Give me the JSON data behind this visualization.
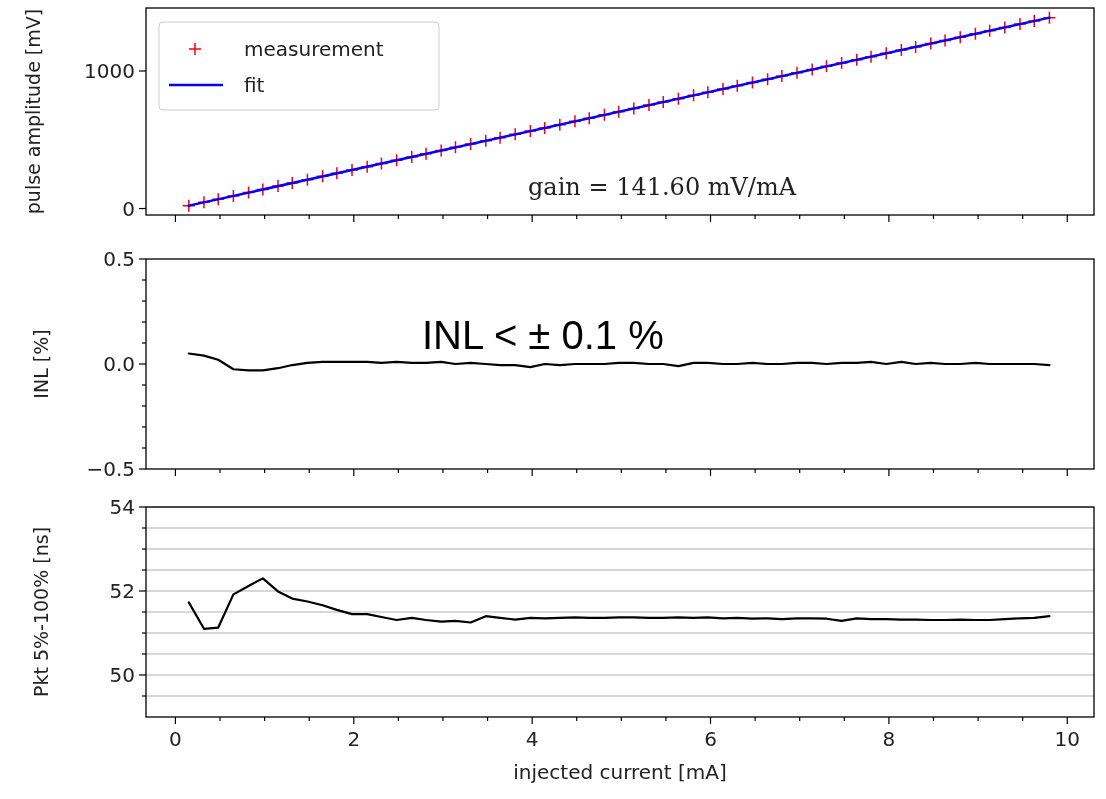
{
  "chart_data": [
    {
      "type": "scatter",
      "ylabel": "pulse amplitude [mV]",
      "annotations": [
        "gain = 141.60 mV/mA"
      ],
      "legend": "top left",
      "tick_labels": "y",
      "x": [
        0.15,
        0.32,
        0.48,
        0.65,
        0.82,
        0.98,
        1.15,
        1.31,
        1.48,
        1.65,
        1.81,
        1.98,
        2.15,
        2.31,
        2.48,
        2.65,
        2.81,
        2.98,
        3.14,
        3.31,
        3.48,
        3.64,
        3.81,
        3.98,
        4.14,
        4.31,
        4.48,
        4.64,
        4.81,
        4.97,
        5.14,
        5.31,
        5.47,
        5.64,
        5.81,
        5.97,
        6.14,
        6.3,
        6.47,
        6.64,
        6.8,
        6.97,
        7.14,
        7.3,
        7.47,
        7.64,
        7.8,
        7.97,
        8.14,
        8.3,
        8.47,
        8.63,
        8.8,
        8.97,
        9.13,
        9.3,
        9.47,
        9.63,
        9.8
      ],
      "series": [
        {
          "name": "measurement",
          "marker": "cross",
          "color": "#ff0000",
          "values": [
            21,
            45,
            68,
            92,
            116,
            139,
            163,
            185,
            210,
            234,
            256,
            280,
            304,
            327,
            351,
            375,
            398,
            422,
            445,
            469,
            493,
            515,
            540,
            564,
            586,
            610,
            634,
            657,
            681,
            704,
            728,
            752,
            775,
            799,
            823,
            845,
            869,
            892,
            916,
            940,
            963,
            987,
            1011,
            1034,
            1058,
            1082,
            1104,
            1129,
            1153,
            1175,
            1199,
            1222,
            1246,
            1270,
            1293,
            1317,
            1341,
            1364,
            1388
          ]
        },
        {
          "name": "fit",
          "type": "line",
          "color": "#0000ff",
          "x": [
            0.15,
            9.8
          ],
          "values": [
            21,
            1388
          ]
        }
      ],
      "xlim": [
        -0.33,
        10.3
      ],
      "xticks": [
        0,
        {
          "value": 0.5,
          "label": null
        },
        {
          "value": 1,
          "label": null
        },
        {
          "value": 1.5,
          "label": null
        },
        2,
        {
          "value": 2.5,
          "label": null
        },
        {
          "value": 3,
          "label": null
        },
        {
          "value": 3.5,
          "label": null
        },
        4,
        {
          "value": 4.5,
          "label": null
        },
        {
          "value": 5,
          "label": null
        },
        {
          "value": 5.5,
          "label": null
        },
        6,
        {
          "value": 6.5,
          "label": null
        },
        {
          "value": 7,
          "label": null
        },
        {
          "value": 7.5,
          "label": null
        },
        8,
        {
          "value": 8.5,
          "label": null
        },
        {
          "value": 9,
          "label": null
        },
        {
          "value": 9.5,
          "label": null
        },
        10
      ],
      "ylim": [
        -47,
        1458
      ],
      "yticks": [
        0,
        1000
      ]
    },
    {
      "type": "line",
      "ylabel": "INL [%]",
      "annotations": [
        "INL < ± 0.1 %"
      ],
      "tick_labels": "y",
      "x": [
        0.15,
        0.32,
        0.48,
        0.65,
        0.82,
        0.98,
        1.15,
        1.31,
        1.48,
        1.65,
        1.81,
        1.98,
        2.15,
        2.31,
        2.48,
        2.65,
        2.81,
        2.98,
        3.14,
        3.31,
        3.48,
        3.64,
        3.81,
        3.98,
        4.14,
        4.31,
        4.48,
        4.64,
        4.81,
        4.97,
        5.14,
        5.31,
        5.47,
        5.64,
        5.81,
        5.97,
        6.14,
        6.3,
        6.47,
        6.64,
        6.8,
        6.97,
        7.14,
        7.3,
        7.47,
        7.64,
        7.8,
        7.97,
        8.14,
        8.3,
        8.47,
        8.63,
        8.8,
        8.97,
        9.13,
        9.3,
        9.47,
        9.63,
        9.8
      ],
      "series": [
        {
          "color": "#000000",
          "values": [
            0.05,
            0.04,
            0.02,
            -0.025,
            -0.03,
            -0.03,
            -0.02,
            -0.005,
            0.005,
            0.01,
            0.01,
            0.01,
            0.01,
            0.005,
            0.01,
            0.005,
            0.005,
            0.01,
            0.0,
            0.005,
            0.0,
            -0.005,
            -0.005,
            -0.015,
            0.0,
            -0.005,
            0.0,
            0.0,
            0.0,
            0.005,
            0.005,
            0.0,
            0.0,
            -0.01,
            0.005,
            0.005,
            0.0,
            0.0,
            0.005,
            0.0,
            0.0,
            0.005,
            0.005,
            0.0,
            0.005,
            0.005,
            0.01,
            0.0,
            0.01,
            0.0,
            0.005,
            0.0,
            0.0,
            0.005,
            0.0,
            0.0,
            0.0,
            0.0,
            -0.005
          ]
        }
      ],
      "xlim": [
        -0.33,
        10.3
      ],
      "xticks": [
        0,
        {
          "value": 0.5,
          "label": null
        },
        {
          "value": 1,
          "label": null
        },
        {
          "value": 1.5,
          "label": null
        },
        2,
        {
          "value": 2.5,
          "label": null
        },
        {
          "value": 3,
          "label": null
        },
        {
          "value": 3.5,
          "label": null
        },
        4,
        {
          "value": 4.5,
          "label": null
        },
        {
          "value": 5,
          "label": null
        },
        {
          "value": 5.5,
          "label": null
        },
        6,
        {
          "value": 6.5,
          "label": null
        },
        {
          "value": 7,
          "label": null
        },
        {
          "value": 7.5,
          "label": null
        },
        8,
        {
          "value": 8.5,
          "label": null
        },
        {
          "value": 9,
          "label": null
        },
        {
          "value": 9.5,
          "label": null
        },
        10
      ],
      "ylim": [
        -0.5,
        0.5
      ],
      "yticks": [
        {
          "value": -0.5,
          "label": "−0.5"
        },
        {
          "value": -0.4,
          "label": null
        },
        {
          "value": -0.3,
          "label": null
        },
        {
          "value": -0.2,
          "label": null
        },
        {
          "value": -0.1,
          "label": null
        },
        {
          "value": 0,
          "label": "0.0"
        },
        {
          "value": 0.1,
          "label": null
        },
        {
          "value": 0.2,
          "label": null
        },
        {
          "value": 0.3,
          "label": null
        },
        {
          "value": 0.4,
          "label": null
        },
        {
          "value": 0.5,
          "label": "0.5"
        }
      ]
    },
    {
      "type": "line",
      "ylabel": "Pkt 5%-100% [ns]",
      "xlabel": "injected current [mA]",
      "grid": "y",
      "x": [
        0.15,
        0.32,
        0.48,
        0.65,
        0.82,
        0.98,
        1.15,
        1.31,
        1.48,
        1.65,
        1.81,
        1.98,
        2.15,
        2.31,
        2.48,
        2.65,
        2.81,
        2.98,
        3.14,
        3.31,
        3.48,
        3.64,
        3.81,
        3.98,
        4.14,
        4.31,
        4.48,
        4.64,
        4.81,
        4.97,
        5.14,
        5.31,
        5.47,
        5.64,
        5.81,
        5.97,
        6.14,
        6.3,
        6.47,
        6.64,
        6.8,
        6.97,
        7.14,
        7.3,
        7.47,
        7.64,
        7.8,
        7.97,
        8.14,
        8.3,
        8.47,
        8.63,
        8.8,
        8.97,
        9.13,
        9.3,
        9.47,
        9.63,
        9.8
      ],
      "series": [
        {
          "color": "#000000",
          "values": [
            51.73,
            51.1,
            51.13,
            51.92,
            52.12,
            52.3,
            51.99,
            51.82,
            51.75,
            51.66,
            51.55,
            51.45,
            51.45,
            51.38,
            51.31,
            51.36,
            51.31,
            51.27,
            51.29,
            51.25,
            51.4,
            51.36,
            51.32,
            51.36,
            51.35,
            51.36,
            51.37,
            51.36,
            51.36,
            51.37,
            51.37,
            51.36,
            51.36,
            51.37,
            51.36,
            51.37,
            51.35,
            51.36,
            51.34,
            51.35,
            51.33,
            51.35,
            51.35,
            51.34,
            51.29,
            51.35,
            51.33,
            51.33,
            51.32,
            51.32,
            51.31,
            51.31,
            51.32,
            51.31,
            51.31,
            51.33,
            51.35,
            51.36,
            51.4
          ]
        }
      ],
      "xlim": [
        -0.33,
        10.3
      ],
      "xticks": [
        0,
        {
          "value": 0.5,
          "label": null
        },
        {
          "value": 1,
          "label": null
        },
        {
          "value": 1.5,
          "label": null
        },
        2,
        {
          "value": 2.5,
          "label": null
        },
        {
          "value": 3,
          "label": null
        },
        {
          "value": 3.5,
          "label": null
        },
        4,
        {
          "value": 4.5,
          "label": null
        },
        {
          "value": 5,
          "label": null
        },
        {
          "value": 5.5,
          "label": null
        },
        6,
        {
          "value": 6.5,
          "label": null
        },
        {
          "value": 7,
          "label": null
        },
        {
          "value": 7.5,
          "label": null
        },
        8,
        {
          "value": 8.5,
          "label": null
        },
        {
          "value": 9,
          "label": null
        },
        {
          "value": 9.5,
          "label": null
        },
        10
      ],
      "ylim": [
        49,
        54
      ],
      "yticks": [
        {
          "value": 49.5,
          "label": null
        },
        50,
        {
          "value": 50.5,
          "label": null
        },
        {
          "value": 51,
          "label": null
        },
        {
          "value": 51.5,
          "label": null
        },
        52,
        {
          "value": 52.5,
          "label": null
        },
        {
          "value": 53,
          "label": null
        },
        {
          "value": 53.5,
          "label": null
        },
        54
      ]
    }
  ]
}
